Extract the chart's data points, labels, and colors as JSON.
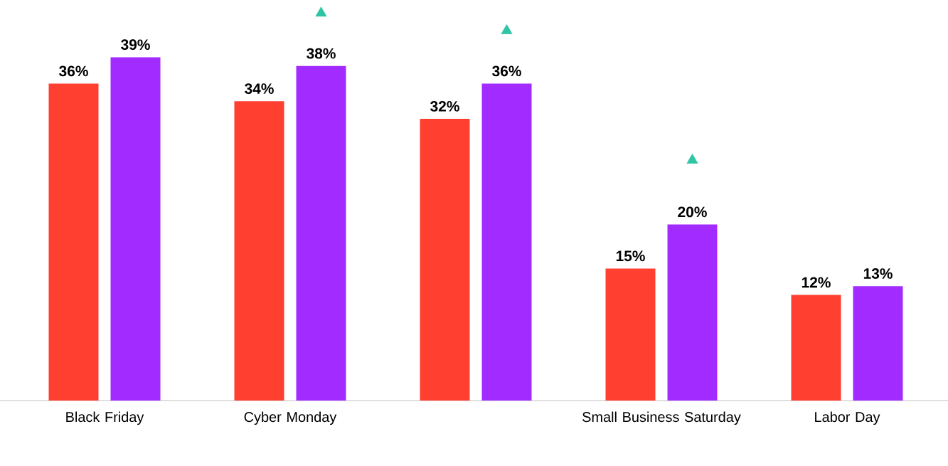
{
  "chart_data": {
    "type": "bar",
    "categories": [
      "Black Friday",
      "Cyber Monday",
      null,
      "Small Business Saturday",
      "Labor Day"
    ],
    "series": [
      {
        "color": "#ff4030",
        "values": [
          36,
          34,
          32,
          15,
          12
        ],
        "value_labels": [
          "36%",
          "34%",
          "32%",
          "15%",
          "12%"
        ]
      },
      {
        "color": "#a22bff",
        "values": [
          39,
          38,
          36,
          20,
          13
        ],
        "value_labels": [
          "39%",
          "38%",
          "36%",
          "20%",
          "13%"
        ]
      },
      {
        "type": "scatter",
        "marker": "triangle",
        "color": "#2ec4a4",
        "values": [
          null,
          44,
          42,
          27.3,
          null
        ]
      }
    ]
  }
}
